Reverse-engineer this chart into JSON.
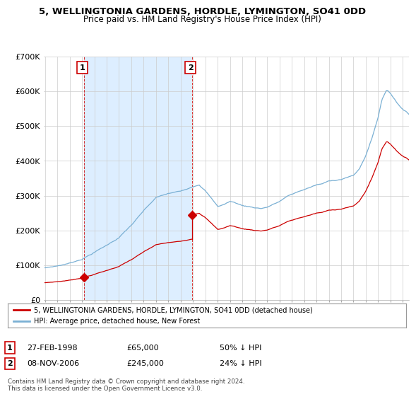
{
  "title": "5, WELLINGTONIA GARDENS, HORDLE, LYMINGTON, SO41 0DD",
  "subtitle": "Price paid vs. HM Land Registry's House Price Index (HPI)",
  "red_label": "5, WELLINGTONIA GARDENS, HORDLE, LYMINGTON, SO41 0DD (detached house)",
  "blue_label": "HPI: Average price, detached house, New Forest",
  "sale1_date": "27-FEB-1998",
  "sale1_price": "£65,000",
  "sale1_pct": "50% ↓ HPI",
  "sale2_date": "08-NOV-2006",
  "sale2_price": "£245,000",
  "sale2_pct": "24% ↓ HPI",
  "footer": "Contains HM Land Registry data © Crown copyright and database right 2024.\nThis data is licensed under the Open Government Licence v3.0.",
  "ylim": [
    0,
    700000
  ],
  "yticks": [
    0,
    100000,
    200000,
    300000,
    400000,
    500000,
    600000,
    700000
  ],
  "ytick_labels": [
    "£0",
    "£100K",
    "£200K",
    "£300K",
    "£400K",
    "£500K",
    "£600K",
    "£700K"
  ],
  "background_color": "#ffffff",
  "plot_bg_color": "#ffffff",
  "shade_color": "#ddeeff",
  "grid_color": "#cccccc",
  "red_color": "#cc0000",
  "blue_color": "#7ab0d4",
  "sale1_x": 1998.15,
  "sale1_y": 65000,
  "sale2_x": 2006.92,
  "sale2_y": 245000,
  "vline1_x": 1998.15,
  "vline2_x": 2006.92,
  "xmin": 1995.0,
  "xmax": 2025.0
}
